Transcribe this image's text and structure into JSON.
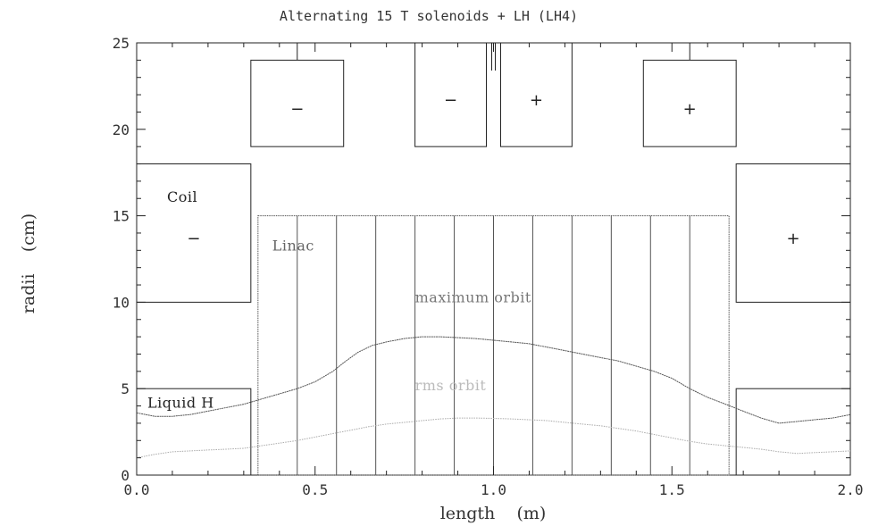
{
  "chart_data": {
    "type": "line",
    "title": "Alternating 15 T solenoids + LH (LH4)",
    "xlabel": "length    (m)",
    "ylabel": "radii    (cm)",
    "xlim": [
      0.0,
      2.0
    ],
    "ylim": [
      0,
      25
    ],
    "xticks": [
      0.0,
      0.5,
      1.0,
      1.5,
      2.0
    ],
    "xtick_labels": [
      "0.0",
      "0.5",
      "1.0",
      "1.5",
      "2.0"
    ],
    "yticks": [
      0,
      5,
      10,
      15,
      20,
      25
    ],
    "ytick_labels": [
      "0",
      "5",
      "10",
      "15",
      "20",
      "25"
    ],
    "grid": false,
    "series": [
      {
        "name": "maximum orbit",
        "color": "#555555",
        "x": [
          0.0,
          0.05,
          0.1,
          0.15,
          0.2,
          0.25,
          0.3,
          0.35,
          0.4,
          0.45,
          0.5,
          0.55,
          0.58,
          0.62,
          0.66,
          0.7,
          0.75,
          0.8,
          0.85,
          0.9,
          0.95,
          1.0,
          1.05,
          1.1,
          1.15,
          1.2,
          1.25,
          1.3,
          1.35,
          1.4,
          1.45,
          1.5,
          1.55,
          1.6,
          1.65,
          1.7,
          1.75,
          1.8,
          1.85,
          1.9,
          1.95,
          2.0
        ],
        "y": [
          3.6,
          3.4,
          3.4,
          3.5,
          3.7,
          3.9,
          4.1,
          4.4,
          4.7,
          5.0,
          5.4,
          6.0,
          6.5,
          7.1,
          7.5,
          7.7,
          7.9,
          8.0,
          8.0,
          7.95,
          7.9,
          7.8,
          7.7,
          7.6,
          7.4,
          7.2,
          7.0,
          6.8,
          6.6,
          6.3,
          6.0,
          5.6,
          5.0,
          4.5,
          4.1,
          3.7,
          3.3,
          3.0,
          3.1,
          3.2,
          3.3,
          3.5
        ],
        "label": "maximum orbit"
      },
      {
        "name": "rms orbit",
        "color": "#aaaaaa",
        "x": [
          0.0,
          0.05,
          0.1,
          0.15,
          0.2,
          0.25,
          0.3,
          0.35,
          0.4,
          0.45,
          0.5,
          0.55,
          0.6,
          0.65,
          0.7,
          0.75,
          0.8,
          0.85,
          0.9,
          0.95,
          1.0,
          1.05,
          1.1,
          1.15,
          1.2,
          1.25,
          1.3,
          1.35,
          1.4,
          1.45,
          1.5,
          1.55,
          1.6,
          1.65,
          1.7,
          1.75,
          1.8,
          1.85,
          1.9,
          1.95,
          2.0
        ],
        "y": [
          1.0,
          1.2,
          1.35,
          1.4,
          1.45,
          1.5,
          1.55,
          1.7,
          1.85,
          2.0,
          2.2,
          2.4,
          2.6,
          2.8,
          2.95,
          3.05,
          3.15,
          3.25,
          3.3,
          3.3,
          3.28,
          3.25,
          3.2,
          3.15,
          3.05,
          2.95,
          2.85,
          2.7,
          2.55,
          2.35,
          2.15,
          1.95,
          1.8,
          1.7,
          1.6,
          1.5,
          1.35,
          1.25,
          1.3,
          1.35,
          1.4
        ],
        "label": "rms orbit"
      }
    ],
    "components": {
      "coils": [
        {
          "id": "coil-left",
          "x0": 0.0,
          "x1": 0.32,
          "y0": 10,
          "y1": 18,
          "sign": "−",
          "label": "Coil"
        },
        {
          "id": "coil-top-1",
          "x0": 0.32,
          "x1": 0.58,
          "y0": 19,
          "y1": 24,
          "sign": "−"
        },
        {
          "id": "coil-top-2",
          "x0": 0.78,
          "x1": 0.98,
          "y0": 19,
          "y1": 25,
          "sign": "−"
        },
        {
          "id": "coil-top-3",
          "x0": 1.02,
          "x1": 1.22,
          "y0": 19,
          "y1": 25,
          "sign": "+"
        },
        {
          "id": "coil-top-4",
          "x0": 1.42,
          "x1": 1.68,
          "y0": 19,
          "y1": 24,
          "sign": "+"
        },
        {
          "id": "coil-right",
          "x0": 1.68,
          "x1": 2.0,
          "y0": 10,
          "y1": 18,
          "sign": "+"
        }
      ],
      "liquid_h": [
        {
          "id": "liquid-h-left",
          "x0": 0.0,
          "x1": 0.32,
          "y0": 0,
          "y1": 5,
          "label": "Liquid H"
        },
        {
          "id": "liquid-h-right",
          "x0": 1.68,
          "x1": 2.0,
          "y0": 0,
          "y1": 5
        }
      ],
      "linac": {
        "label": "Linac",
        "x0": 0.34,
        "x1": 1.66,
        "y0": 0,
        "y1": 15,
        "cells": [
          0.34,
          0.45,
          0.56,
          0.67,
          0.78,
          0.89,
          1.0,
          1.11,
          1.22,
          1.33,
          1.44,
          1.55,
          1.66
        ]
      }
    },
    "annotations": [
      {
        "text": "maximum orbit",
        "x": 0.78,
        "y": 10.0
      },
      {
        "text": "rms orbit",
        "x": 0.78,
        "y": 4.9
      },
      {
        "text": "Linac",
        "x": 0.38,
        "y": 13.0
      },
      {
        "text": "Coil",
        "x": 0.085,
        "y": 15.8
      },
      {
        "text": "Liquid H",
        "x": 0.03,
        "y": 3.9
      }
    ]
  }
}
